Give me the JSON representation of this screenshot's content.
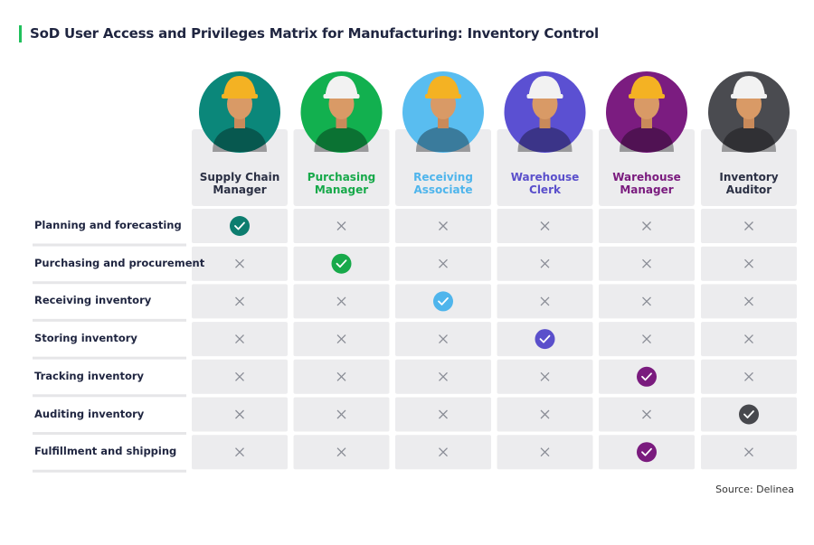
{
  "title": "SoD User Access and Privileges Matrix for Manufacturing: Inventory Control",
  "columns": [
    {
      "name": "Supply Chain Manager",
      "color": "#2b3044",
      "check_color": "#0d7d6f",
      "avatar_color": "#0b877a",
      "helmet_color": "#f4b223"
    },
    {
      "name": "Purchasing Manager",
      "color": "#17a94a",
      "check_color": "#17a94a",
      "avatar_color": "#12b04f",
      "helmet_color": "#f2f2f2"
    },
    {
      "name": "Receiving Associate",
      "color": "#4fb5ec",
      "check_color": "#4fb5ec",
      "avatar_color": "#59bdf0",
      "helmet_color": "#f4b223"
    },
    {
      "name": "Warehouse Clerk",
      "color": "#5a4fcb",
      "check_color": "#5a4fcb",
      "avatar_color": "#5b50d2",
      "helmet_color": "#f2f2f2"
    },
    {
      "name": "Warehouse Manager",
      "color": "#7a1b7e",
      "check_color": "#7a1b7e",
      "avatar_color": "#7b1c80",
      "helmet_color": "#f4b223"
    },
    {
      "name": "Inventory Auditor",
      "color": "#2b3044",
      "check_color": "#47484d",
      "avatar_color": "#4a4b50",
      "helmet_color": "#f2f2f2"
    }
  ],
  "rows": [
    {
      "label": "Planning and forecasting",
      "access": [
        true,
        false,
        false,
        false,
        false,
        false
      ]
    },
    {
      "label": "Purchasing and procurement",
      "access": [
        false,
        true,
        false,
        false,
        false,
        false
      ]
    },
    {
      "label": "Receiving inventory",
      "access": [
        false,
        false,
        true,
        false,
        false,
        false
      ]
    },
    {
      "label": "Storing inventory",
      "access": [
        false,
        false,
        false,
        true,
        false,
        false
      ]
    },
    {
      "label": "Tracking inventory",
      "access": [
        false,
        false,
        false,
        false,
        true,
        false
      ]
    },
    {
      "label": "Auditing inventory",
      "access": [
        false,
        false,
        false,
        false,
        false,
        true
      ]
    },
    {
      "label": "Fulfillment and shipping",
      "access": [
        false,
        false,
        false,
        false,
        true,
        false
      ]
    }
  ],
  "source": "Source: Delinea"
}
